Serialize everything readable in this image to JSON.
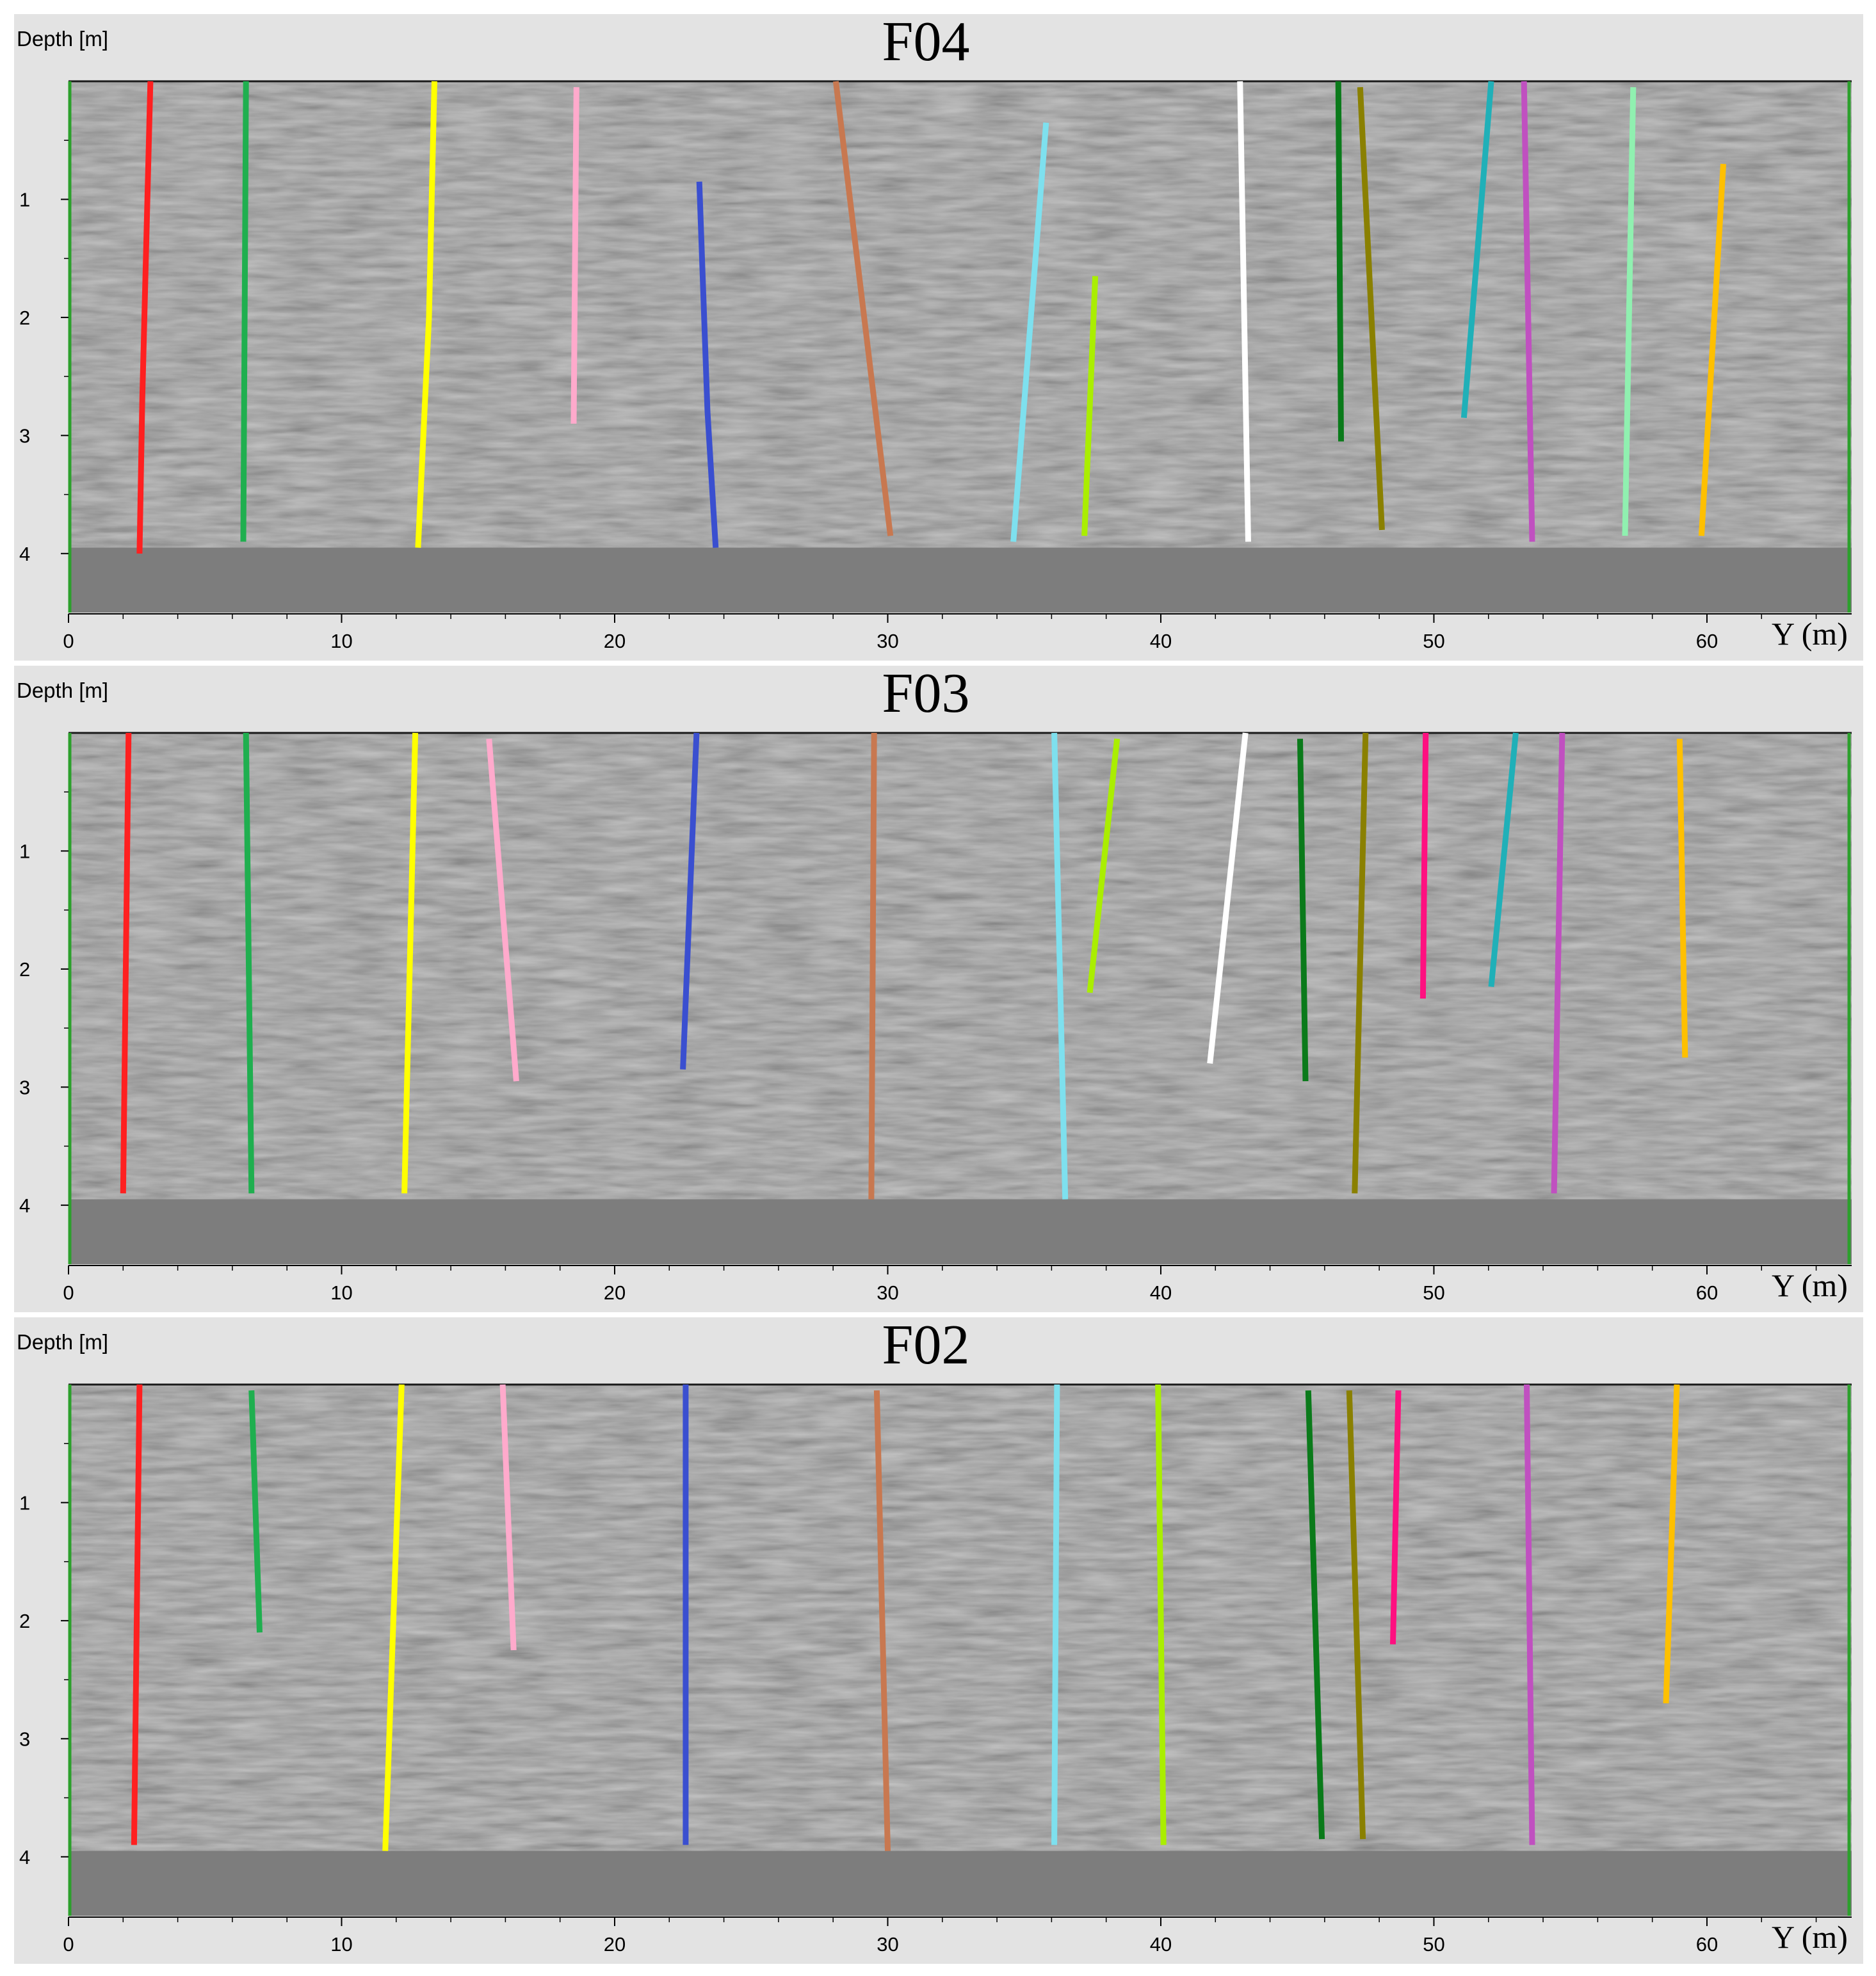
{
  "chart_data": [
    {
      "type": "line",
      "title": "F04",
      "ylabel": "Depth [m]",
      "xlabel": "Y (m)",
      "xlim": [
        0,
        65.3
      ],
      "ylim": [
        4.5,
        0
      ],
      "xticks": [
        "0",
        "10",
        "20",
        "30",
        "40",
        "50",
        "60"
      ],
      "yticks": [
        "1",
        "2",
        "3",
        "4"
      ],
      "grid": false,
      "background": "grey GPR radargram",
      "boundary_color": "#2ca02c",
      "series": [
        {
          "color": "#ff2020",
          "x": [
            3.0,
            2.7,
            2.6
          ],
          "y": [
            0.0,
            2.7,
            4.0
          ]
        },
        {
          "color": "#1faf4f",
          "x": [
            6.5,
            6.45,
            6.4
          ],
          "y": [
            0.0,
            2.0,
            3.9
          ]
        },
        {
          "color": "#ffff00",
          "x": [
            13.4,
            13.2,
            12.8
          ],
          "y": [
            0.0,
            2.0,
            3.95
          ]
        },
        {
          "color": "#ffaacc",
          "x": [
            18.6,
            18.55,
            18.5
          ],
          "y": [
            0.05,
            1.5,
            2.9
          ]
        },
        {
          "color": "#3a4fd0",
          "x": [
            23.1,
            23.4,
            23.7
          ],
          "y": [
            0.85,
            2.8,
            3.95
          ]
        },
        {
          "color": "#c87850",
          "x": [
            28.1,
            30.1
          ],
          "y": [
            0.0,
            3.85
          ]
        },
        {
          "color": "#7ee0ee",
          "x": [
            35.8,
            34.6
          ],
          "y": [
            0.35,
            3.9
          ]
        },
        {
          "color": "#aaee00",
          "x": [
            37.6,
            37.2
          ],
          "y": [
            1.65,
            3.85
          ]
        },
        {
          "color": "#ffffff",
          "x": [
            42.9,
            43.2
          ],
          "y": [
            0.0,
            3.9
          ]
        },
        {
          "color": "#0a7a1a",
          "x": [
            46.5,
            46.6
          ],
          "y": [
            0.0,
            3.05
          ]
        },
        {
          "color": "#8a8000",
          "x": [
            47.3,
            48.1
          ],
          "y": [
            0.05,
            3.8
          ]
        },
        {
          "color": "#20b0b8",
          "x": [
            52.1,
            51.1
          ],
          "y": [
            0.0,
            2.85
          ]
        },
        {
          "color": "#c050c0",
          "x": [
            53.3,
            53.6
          ],
          "y": [
            0.0,
            3.9
          ]
        },
        {
          "color": "#90f0b0",
          "x": [
            57.3,
            57.0
          ],
          "y": [
            0.05,
            3.85
          ]
        },
        {
          "color": "#ffc000",
          "x": [
            60.6,
            59.8
          ],
          "y": [
            0.7,
            3.85
          ]
        }
      ]
    },
    {
      "type": "line",
      "title": "F03",
      "ylabel": "Depth [m]",
      "xlabel": "Y (m)",
      "xlim": [
        0,
        65.3
      ],
      "ylim": [
        4.5,
        0
      ],
      "xticks": [
        "0",
        "10",
        "20",
        "30",
        "40",
        "50",
        "60"
      ],
      "yticks": [
        "1",
        "2",
        "3",
        "4"
      ],
      "grid": false,
      "background": "grey GPR radargram",
      "boundary_color": "#2ca02c",
      "series": [
        {
          "color": "#ff2020",
          "x": [
            2.2,
            2.0
          ],
          "y": [
            0.0,
            3.9
          ]
        },
        {
          "color": "#1faf4f",
          "x": [
            6.5,
            6.7
          ],
          "y": [
            0.0,
            3.9
          ]
        },
        {
          "color": "#ffff00",
          "x": [
            12.7,
            12.3
          ],
          "y": [
            0.0,
            3.9
          ]
        },
        {
          "color": "#ffaacc",
          "x": [
            15.4,
            16.4
          ],
          "y": [
            0.05,
            2.95
          ]
        },
        {
          "color": "#3a4fd0",
          "x": [
            23.0,
            22.5
          ],
          "y": [
            0.0,
            2.85
          ]
        },
        {
          "color": "#c87850",
          "x": [
            29.5,
            29.4
          ],
          "y": [
            0.0,
            3.95
          ]
        },
        {
          "color": "#7ee0ee",
          "x": [
            36.1,
            36.5
          ],
          "y": [
            0.0,
            3.95
          ]
        },
        {
          "color": "#aaee00",
          "x": [
            38.4,
            37.4
          ],
          "y": [
            0.05,
            2.2
          ]
        },
        {
          "color": "#ffffff",
          "x": [
            43.1,
            41.8
          ],
          "y": [
            0.0,
            2.8
          ]
        },
        {
          "color": "#0a7a1a",
          "x": [
            45.1,
            45.3
          ],
          "y": [
            0.05,
            2.95
          ]
        },
        {
          "color": "#8a8000",
          "x": [
            47.5,
            47.1
          ],
          "y": [
            0.0,
            3.9
          ]
        },
        {
          "color": "#ff1080",
          "x": [
            49.7,
            49.6
          ],
          "y": [
            0.0,
            2.25
          ]
        },
        {
          "color": "#20b0b8",
          "x": [
            53.0,
            52.1
          ],
          "y": [
            0.0,
            2.15
          ]
        },
        {
          "color": "#c050c0",
          "x": [
            54.7,
            54.4
          ],
          "y": [
            0.0,
            3.9
          ]
        },
        {
          "color": "#ffc000",
          "x": [
            59.0,
            59.2
          ],
          "y": [
            0.05,
            2.75
          ]
        }
      ]
    },
    {
      "type": "line",
      "title": "F02",
      "ylabel": "Depth [m]",
      "xlabel": "Y (m)",
      "xlim": [
        0,
        65.3
      ],
      "ylim": [
        4.5,
        0
      ],
      "xticks": [
        "0",
        "10",
        "20",
        "30",
        "40",
        "50",
        "60"
      ],
      "yticks": [
        "1",
        "2",
        "3",
        "4"
      ],
      "grid": false,
      "background": "grey GPR radargram",
      "boundary_color": "#2ca02c",
      "series": [
        {
          "color": "#ff2020",
          "x": [
            2.6,
            2.4
          ],
          "y": [
            0.0,
            3.9
          ]
        },
        {
          "color": "#1faf4f",
          "x": [
            6.7,
            7.0
          ],
          "y": [
            0.05,
            2.1
          ]
        },
        {
          "color": "#ffff00",
          "x": [
            12.2,
            11.6
          ],
          "y": [
            0.0,
            3.95
          ]
        },
        {
          "color": "#ffaacc",
          "x": [
            15.9,
            16.3
          ],
          "y": [
            0.0,
            2.25
          ]
        },
        {
          "color": "#3a4fd0",
          "x": [
            22.6,
            22.6
          ],
          "y": [
            0.0,
            3.9
          ]
        },
        {
          "color": "#c87850",
          "x": [
            29.6,
            30.0
          ],
          "y": [
            0.05,
            3.95
          ]
        },
        {
          "color": "#7ee0ee",
          "x": [
            36.2,
            36.1
          ],
          "y": [
            0.0,
            3.9
          ]
        },
        {
          "color": "#aaee00",
          "x": [
            39.9,
            40.1
          ],
          "y": [
            0.0,
            3.9
          ]
        },
        {
          "color": "#0a7a1a",
          "x": [
            45.4,
            45.9
          ],
          "y": [
            0.05,
            3.85
          ]
        },
        {
          "color": "#8a8000",
          "x": [
            46.9,
            47.4
          ],
          "y": [
            0.05,
            3.85
          ]
        },
        {
          "color": "#ff1080",
          "x": [
            48.7,
            48.5
          ],
          "y": [
            0.05,
            2.2
          ]
        },
        {
          "color": "#c050c0",
          "x": [
            53.4,
            53.6
          ],
          "y": [
            0.0,
            3.9
          ]
        },
        {
          "color": "#ffc000",
          "x": [
            58.9,
            58.5
          ],
          "y": [
            0.0,
            2.7
          ]
        }
      ]
    }
  ]
}
